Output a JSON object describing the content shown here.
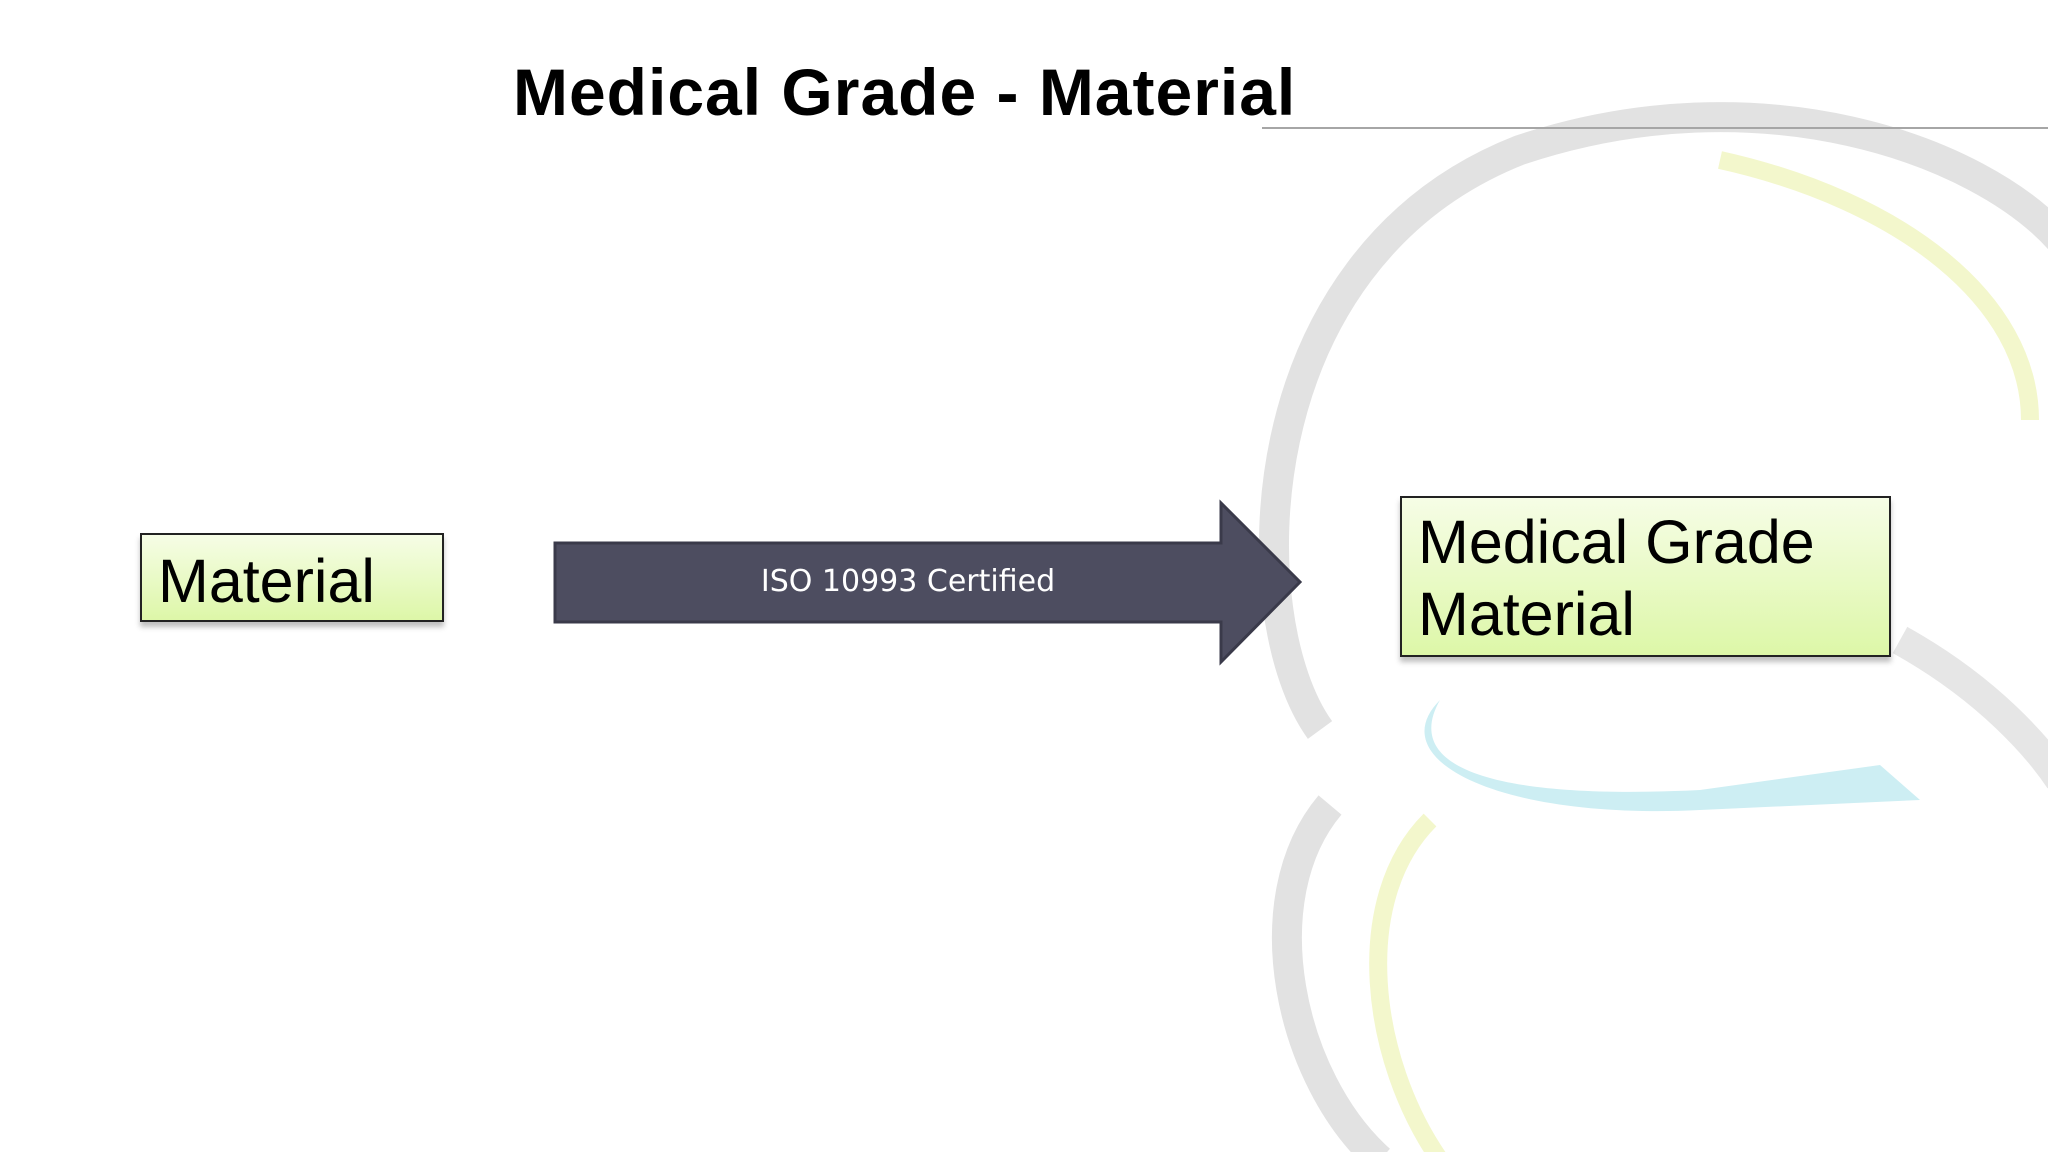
{
  "slide": {
    "title": "Medical Grade - Material",
    "source_box": {
      "label": "Material"
    },
    "arrow": {
      "label": "ISO 10993 Certified",
      "color": "#4d4d60"
    },
    "target_box": {
      "line1": "Medical Grade",
      "line2": "Material"
    },
    "box_fill": "#e3f8b4",
    "background_logo_colors": [
      "#e2e2e2",
      "#f3f7cc",
      "#c9ecf1"
    ]
  }
}
